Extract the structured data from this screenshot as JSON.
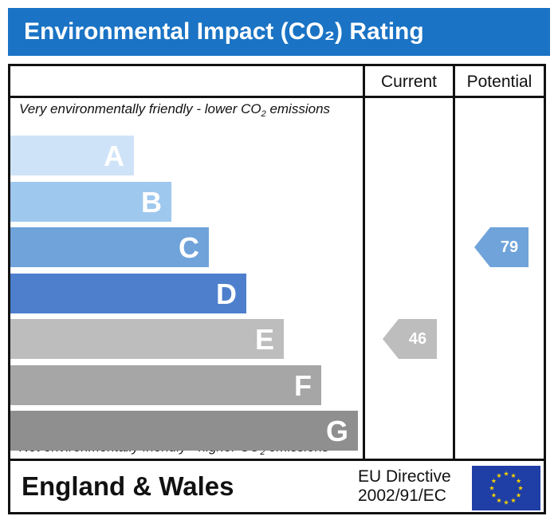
{
  "title": "Environmental Impact (CO₂) Rating",
  "columns": {
    "current": "Current",
    "potential": "Potential"
  },
  "top_caption": {
    "text": "Very environmentally friendly - lower CO",
    "sub": "2",
    "after": " emissions"
  },
  "bottom_caption": {
    "text": "Not environmentally friendly - higher CO",
    "sub": "2",
    "after": " emissions"
  },
  "footer": {
    "region": "England & Wales",
    "directive_line1": "EU Directive",
    "directive_line2": "2002/91/EC"
  },
  "icons": {
    "eu_flag": "eu-flag-icon"
  },
  "chart_data": {
    "type": "bar",
    "bands": [
      {
        "letter": "A",
        "color": "#cfe3f8"
      },
      {
        "letter": "B",
        "color": "#9fc8ef"
      },
      {
        "letter": "C",
        "color": "#6fa3da"
      },
      {
        "letter": "D",
        "color": "#4d7fcc"
      },
      {
        "letter": "E",
        "color": "#bdbdbd"
      },
      {
        "letter": "F",
        "color": "#a6a6a6"
      },
      {
        "letter": "G",
        "color": "#8f8f8f"
      }
    ],
    "current": {
      "value": 46,
      "band": "E",
      "color": "#bdbdbd"
    },
    "potential": {
      "value": 79,
      "band": "C",
      "color": "#6fa3da"
    }
  }
}
